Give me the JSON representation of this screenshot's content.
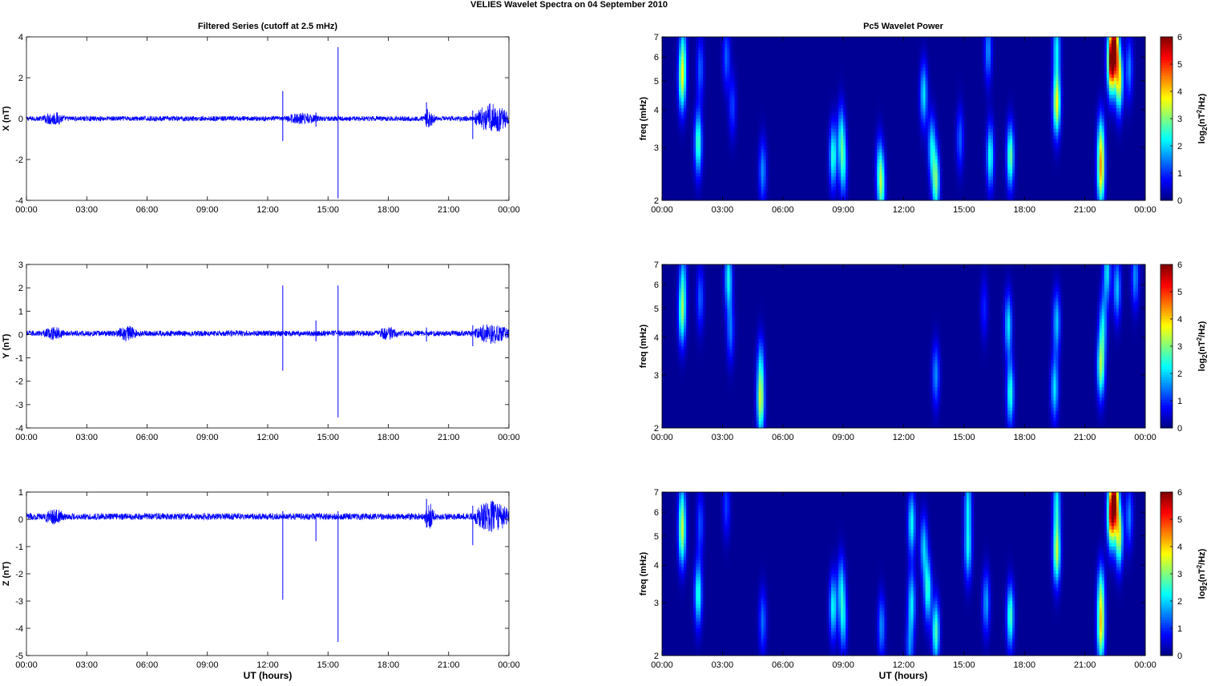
{
  "figure": {
    "title": "VELIES Wavelet Spectra on 04 September 2010",
    "left_title": "Filtered Series (cutoff at 2.5 mHz)",
    "right_title": "Pc5 Wavelet Power",
    "xlabel": "UT (hours)"
  },
  "time_ticks": [
    "00:00",
    "03:00",
    "06:00",
    "09:00",
    "12:00",
    "15:00",
    "18:00",
    "21:00",
    "00:00"
  ],
  "colors": {
    "line": "#0000ff",
    "axes": "#000000",
    "background": "#ffffff"
  },
  "chart_data": [
    {
      "type": "line",
      "ylabel": "X (nT)",
      "xlim_hours": [
        0,
        24
      ],
      "ylim": [
        -4,
        4
      ],
      "yticks": [
        -4,
        -2,
        0,
        2,
        4
      ],
      "baseline": 0,
      "noise_amp": 0.12,
      "spikes": [
        {
          "t": 12.75,
          "max": 1.35,
          "min": -1.1
        },
        {
          "t": 14.4,
          "max": 0.3,
          "min": -0.4
        },
        {
          "t": 15.5,
          "max": 3.5,
          "min": -3.9
        },
        {
          "t": 19.9,
          "max": 0.8,
          "min": -0.4
        },
        {
          "t": 22.2,
          "max": 0.4,
          "min": -1.0
        }
      ],
      "bursts": [
        {
          "t0": 0.8,
          "t1": 1.9,
          "amp": 0.35
        },
        {
          "t0": 12.8,
          "t1": 14.6,
          "amp": 0.3
        },
        {
          "t0": 19.8,
          "t1": 20.3,
          "amp": 0.55
        },
        {
          "t0": 22.3,
          "t1": 24.0,
          "amp": 0.75
        }
      ]
    },
    {
      "type": "line",
      "ylabel": "Y (nT)",
      "xlim_hours": [
        0,
        24
      ],
      "ylim": [
        -4,
        3
      ],
      "yticks": [
        -4,
        -3,
        -2,
        -1,
        0,
        1,
        2,
        3
      ],
      "baseline": 0.05,
      "noise_amp": 0.12,
      "spikes": [
        {
          "t": 12.75,
          "max": 2.1,
          "min": -1.55
        },
        {
          "t": 14.4,
          "max": 0.6,
          "min": -0.3
        },
        {
          "t": 15.5,
          "max": 2.1,
          "min": -3.55
        },
        {
          "t": 19.9,
          "max": 0.3,
          "min": -0.3
        },
        {
          "t": 22.2,
          "max": 0.4,
          "min": -0.5
        }
      ],
      "bursts": [
        {
          "t0": 0.8,
          "t1": 1.9,
          "amp": 0.3
        },
        {
          "t0": 4.5,
          "t1": 5.5,
          "amp": 0.35
        },
        {
          "t0": 17.5,
          "t1": 18.5,
          "amp": 0.3
        },
        {
          "t0": 22.3,
          "t1": 24.0,
          "amp": 0.45
        }
      ]
    },
    {
      "type": "line",
      "ylabel": "Z (nT)",
      "xlim_hours": [
        0,
        24
      ],
      "ylim": [
        -5,
        1
      ],
      "yticks": [
        -5,
        -4,
        -3,
        -2,
        -1,
        0,
        1
      ],
      "baseline": 0.1,
      "noise_amp": 0.12,
      "spikes": [
        {
          "t": 12.75,
          "max": 0.3,
          "min": -2.95
        },
        {
          "t": 14.4,
          "max": 0.2,
          "min": -0.8
        },
        {
          "t": 15.5,
          "max": 0.3,
          "min": -4.5
        },
        {
          "t": 19.9,
          "max": 0.75,
          "min": -0.3
        },
        {
          "t": 22.2,
          "max": 0.5,
          "min": -0.95
        }
      ],
      "bursts": [
        {
          "t0": 0.8,
          "t1": 1.9,
          "amp": 0.3
        },
        {
          "t0": 19.8,
          "t1": 20.3,
          "amp": 0.5
        },
        {
          "t0": 22.3,
          "t1": 24.0,
          "amp": 0.6
        }
      ]
    },
    {
      "type": "heatmap",
      "ylabel": "freq (mHz)",
      "yscale": "log",
      "ylim_mHz": [
        2,
        7
      ],
      "yticks": [
        2,
        3,
        4,
        5,
        6,
        7
      ],
      "xlim_hours": [
        0,
        24
      ],
      "colorbar_label": "log2(nT^2/Hz)",
      "clim": [
        0,
        6
      ],
      "cticks": [
        0,
        1,
        2,
        3,
        4,
        5,
        6
      ],
      "blobs": [
        {
          "t": 1.0,
          "f": 5.0,
          "v": 3.0
        },
        {
          "t": 1.05,
          "f": 6.4,
          "v": 1.5
        },
        {
          "t": 1.8,
          "f": 3.1,
          "v": 2.6
        },
        {
          "t": 1.9,
          "f": 5.5,
          "v": 1.2
        },
        {
          "t": 3.2,
          "f": 6.0,
          "v": 1.2
        },
        {
          "t": 3.5,
          "f": 4.1,
          "v": 1.0
        },
        {
          "t": 5.0,
          "f": 2.5,
          "v": 1.5
        },
        {
          "t": 8.5,
          "f": 2.8,
          "v": 2.4
        },
        {
          "t": 8.9,
          "f": 3.3,
          "v": 1.8
        },
        {
          "t": 9.0,
          "f": 2.6,
          "v": 2.0
        },
        {
          "t": 10.9,
          "f": 2.2,
          "v": 2.4
        },
        {
          "t": 10.8,
          "f": 2.6,
          "v": 1.5
        },
        {
          "t": 13.0,
          "f": 4.5,
          "v": 2.0
        },
        {
          "t": 13.4,
          "f": 3.0,
          "v": 2.0
        },
        {
          "t": 13.6,
          "f": 2.3,
          "v": 2.8
        },
        {
          "t": 14.8,
          "f": 3.2,
          "v": 1.2
        },
        {
          "t": 16.2,
          "f": 6.3,
          "v": 1.5
        },
        {
          "t": 16.3,
          "f": 2.8,
          "v": 2.3
        },
        {
          "t": 17.3,
          "f": 2.8,
          "v": 2.8
        },
        {
          "t": 19.6,
          "f": 4.2,
          "v": 3.6
        },
        {
          "t": 19.6,
          "f": 6.5,
          "v": 2.0
        },
        {
          "t": 21.8,
          "f": 2.4,
          "v": 3.2
        },
        {
          "t": 21.8,
          "f": 3.1,
          "v": 2.4
        },
        {
          "t": 22.3,
          "f": 5.8,
          "v": 5.5
        },
        {
          "t": 22.5,
          "f": 6.5,
          "v": 4.6
        },
        {
          "t": 22.7,
          "f": 5.0,
          "v": 3.5
        },
        {
          "t": 23.2,
          "f": 5.5,
          "v": 1.4
        }
      ]
    },
    {
      "type": "heatmap",
      "ylabel": "freq (mHz)",
      "yscale": "log",
      "ylim_mHz": [
        2,
        7
      ],
      "yticks": [
        2,
        3,
        4,
        5,
        6,
        7
      ],
      "xlim_hours": [
        0,
        24
      ],
      "colorbar_label": "log2(nT^2/Hz)",
      "clim": [
        0,
        6
      ],
      "cticks": [
        0,
        1,
        2,
        3,
        4,
        5,
        6
      ],
      "blobs": [
        {
          "t": 1.0,
          "f": 4.8,
          "v": 2.7
        },
        {
          "t": 1.05,
          "f": 6.4,
          "v": 1.4
        },
        {
          "t": 1.9,
          "f": 5.4,
          "v": 1.2
        },
        {
          "t": 3.3,
          "f": 6.3,
          "v": 2.2
        },
        {
          "t": 3.4,
          "f": 4.2,
          "v": 1.3
        },
        {
          "t": 4.9,
          "f": 2.4,
          "v": 3.0
        },
        {
          "t": 4.9,
          "f": 3.2,
          "v": 1.6
        },
        {
          "t": 13.6,
          "f": 3.0,
          "v": 1.5
        },
        {
          "t": 16.0,
          "f": 5.0,
          "v": 0.8
        },
        {
          "t": 17.3,
          "f": 2.6,
          "v": 2.4
        },
        {
          "t": 17.2,
          "f": 4.4,
          "v": 2.0
        },
        {
          "t": 19.5,
          "f": 2.7,
          "v": 2.0
        },
        {
          "t": 19.6,
          "f": 4.5,
          "v": 1.8
        },
        {
          "t": 21.8,
          "f": 3.2,
          "v": 3.0
        },
        {
          "t": 21.9,
          "f": 4.4,
          "v": 1.8
        },
        {
          "t": 22.1,
          "f": 6.6,
          "v": 2.0
        },
        {
          "t": 22.6,
          "f": 5.8,
          "v": 1.8
        },
        {
          "t": 23.5,
          "f": 6.4,
          "v": 1.5
        }
      ]
    },
    {
      "type": "heatmap",
      "ylabel": "freq (mHz)",
      "yscale": "log",
      "ylim_mHz": [
        2,
        7
      ],
      "yticks": [
        2,
        3,
        4,
        5,
        6,
        7
      ],
      "xlim_hours": [
        0,
        24
      ],
      "colorbar_label": "log2(nT^2/Hz)",
      "clim": [
        0,
        6
      ],
      "cticks": [
        0,
        1,
        2,
        3,
        4,
        5,
        6
      ],
      "blobs": [
        {
          "t": 1.0,
          "f": 5.0,
          "v": 2.7
        },
        {
          "t": 1.0,
          "f": 6.4,
          "v": 1.4
        },
        {
          "t": 1.8,
          "f": 3.2,
          "v": 2.4
        },
        {
          "t": 1.9,
          "f": 5.5,
          "v": 1.1
        },
        {
          "t": 3.2,
          "f": 6.3,
          "v": 1.0
        },
        {
          "t": 5.0,
          "f": 2.6,
          "v": 1.3
        },
        {
          "t": 8.5,
          "f": 2.9,
          "v": 2.2
        },
        {
          "t": 8.9,
          "f": 3.4,
          "v": 1.7
        },
        {
          "t": 9.0,
          "f": 2.6,
          "v": 1.8
        },
        {
          "t": 10.9,
          "f": 2.5,
          "v": 1.5
        },
        {
          "t": 12.4,
          "f": 3.0,
          "v": 2.0
        },
        {
          "t": 12.4,
          "f": 5.5,
          "v": 2.2
        },
        {
          "t": 12.3,
          "f": 2.1,
          "v": 1.3
        },
        {
          "t": 13.2,
          "f": 3.3,
          "v": 2.4
        },
        {
          "t": 13.0,
          "f": 4.6,
          "v": 1.8
        },
        {
          "t": 13.6,
          "f": 2.4,
          "v": 2.6
        },
        {
          "t": 15.2,
          "f": 4.5,
          "v": 2.0
        },
        {
          "t": 15.2,
          "f": 6.5,
          "v": 1.8
        },
        {
          "t": 16.1,
          "f": 3.0,
          "v": 1.6
        },
        {
          "t": 17.3,
          "f": 2.7,
          "v": 2.6
        },
        {
          "t": 19.6,
          "f": 4.4,
          "v": 3.2
        },
        {
          "t": 19.6,
          "f": 6.5,
          "v": 2.0
        },
        {
          "t": 21.8,
          "f": 2.4,
          "v": 3.2
        },
        {
          "t": 21.8,
          "f": 3.2,
          "v": 2.4
        },
        {
          "t": 22.3,
          "f": 5.9,
          "v": 4.8
        },
        {
          "t": 22.5,
          "f": 6.6,
          "v": 4.6
        },
        {
          "t": 22.7,
          "f": 5.0,
          "v": 3.2
        },
        {
          "t": 23.2,
          "f": 5.8,
          "v": 1.4
        }
      ]
    }
  ]
}
